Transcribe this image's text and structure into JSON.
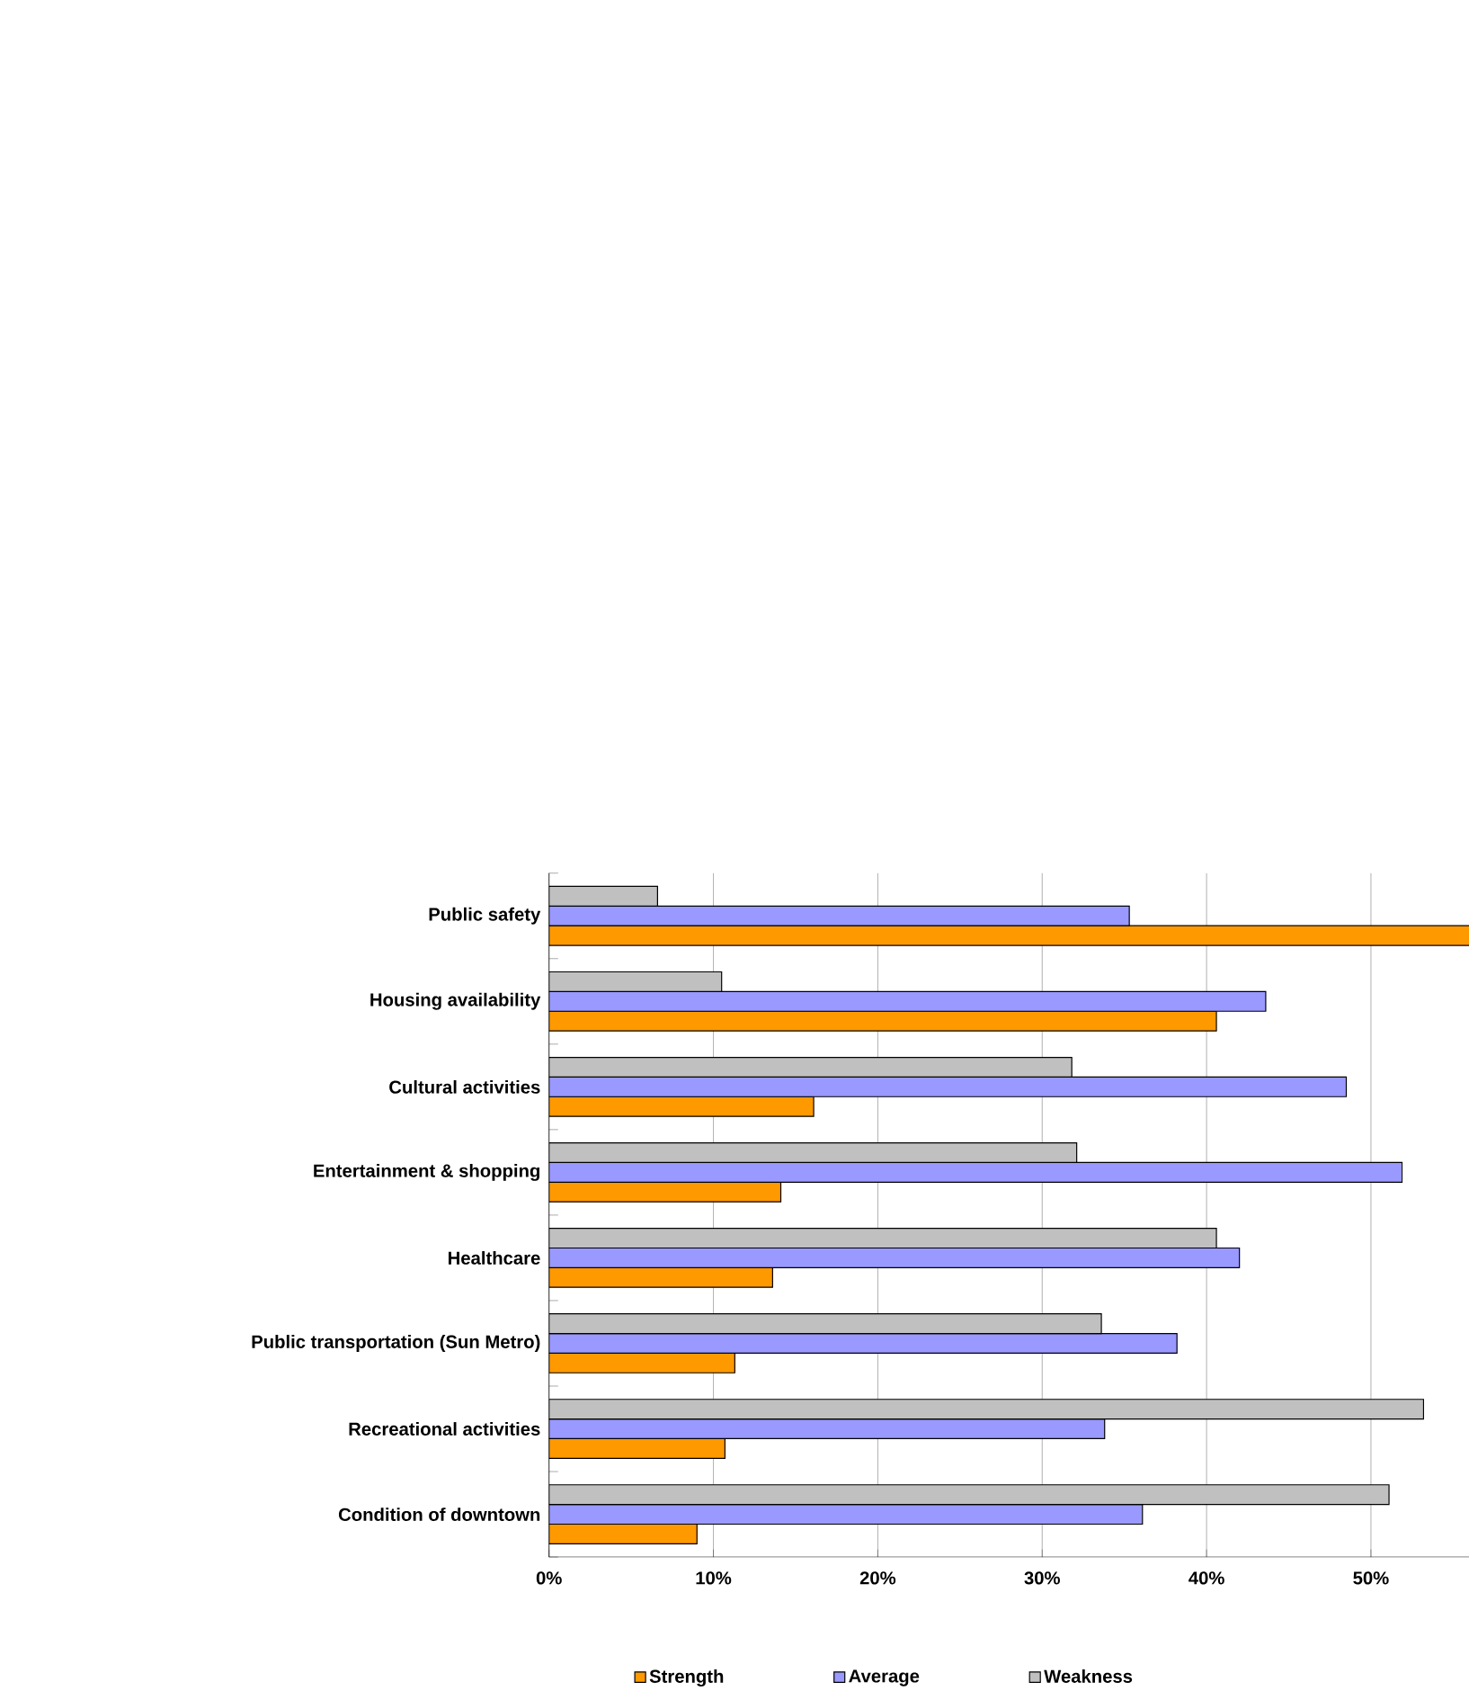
{
  "chart_data": {
    "type": "bar",
    "orientation": "horizontal",
    "categories": [
      "Public safety",
      "Housing availability",
      "Cultural activities",
      "Entertainment & shopping",
      "Healthcare",
      "Public transportation (Sun Metro)",
      "Recreational activities",
      "Condition of downtown"
    ],
    "series": [
      {
        "name": "Strength",
        "color": "#ff9900",
        "values": [
          56,
          40.6,
          16.1,
          14.1,
          13.6,
          11.3,
          10.7,
          9.0
        ]
      },
      {
        "name": "Average",
        "color": "#9999ff",
        "values": [
          35.3,
          43.6,
          48.5,
          51.9,
          42.0,
          38.2,
          33.8,
          36.1
        ]
      },
      {
        "name": "Weakness",
        "color": "#c0c0c0",
        "values": [
          6.6,
          10.5,
          31.8,
          32.1,
          40.6,
          33.6,
          53.2,
          51.1
        ]
      }
    ],
    "xlim": [
      0,
      56
    ],
    "xticks": [
      {
        "value": 0,
        "label": "0%"
      },
      {
        "value": 10,
        "label": "10%"
      },
      {
        "value": 20,
        "label": "20%"
      },
      {
        "value": 30,
        "label": "30%"
      },
      {
        "value": 40,
        "label": "40%"
      },
      {
        "value": 50,
        "label": "50%"
      }
    ],
    "grid": "x",
    "legend": "bottom"
  }
}
